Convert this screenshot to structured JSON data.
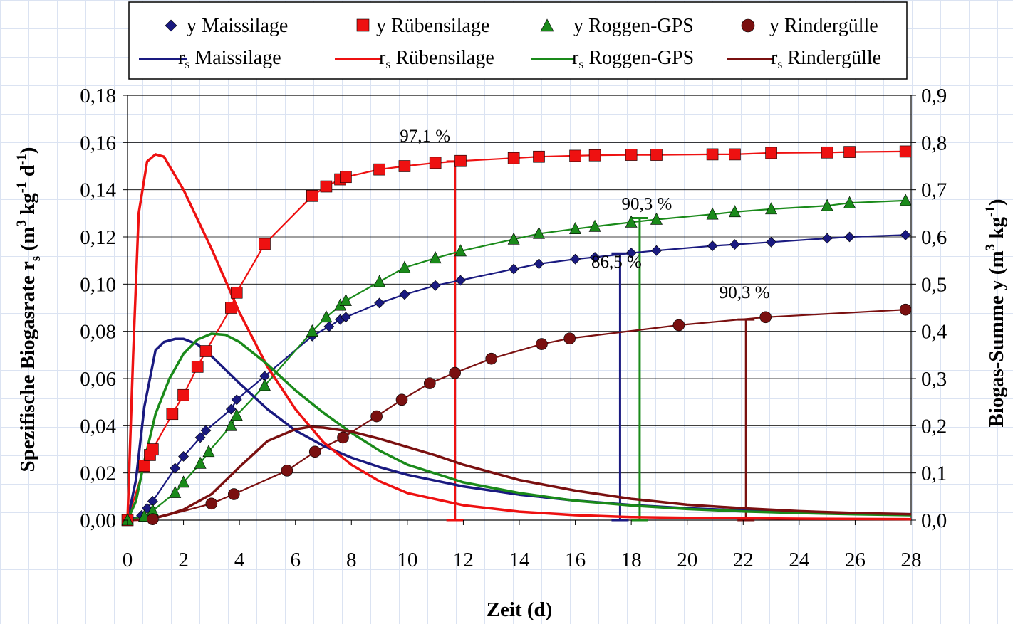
{
  "chart_data": {
    "type": "scatter",
    "xlabel": "Zeit (d)",
    "ylabel_left": "Spezifische Biogasrate r",
    "ylabel_left_sub": "s",
    "ylabel_left_unit": "(m",
    "ylabel_left_unit_exp3": "3",
    "ylabel_left_unit_kg": "kg",
    "ylabel_left_unit_exp_kg": "-1",
    "ylabel_left_unit_d": "d",
    "ylabel_left_unit_exp_d": "-1",
    "ylabel_left_close": ")",
    "ylabel_right": "Biogas-Summe y (m",
    "ylabel_right_exp3": "3",
    "ylabel_right_kg": "kg",
    "ylabel_right_exp_kg": "-1",
    "ylabel_right_close": ")",
    "xlim": [
      0,
      28
    ],
    "ylim_left": [
      0,
      0.18
    ],
    "ylim_right": [
      0,
      0.9
    ],
    "x_ticks": [
      "0",
      "2",
      "4",
      "6",
      "8",
      "10",
      "12",
      "14",
      "16",
      "18",
      "20",
      "22",
      "24",
      "26",
      "28"
    ],
    "y_left_ticks": [
      "0,00",
      "0,02",
      "0,04",
      "0,06",
      "0,08",
      "0,10",
      "0,12",
      "0,14",
      "0,16",
      "0,18"
    ],
    "y_right_ticks": [
      "0,0",
      "0,1",
      "0,2",
      "0,3",
      "0,4",
      "0,5",
      "0,6",
      "0,7",
      "0,8",
      "0,9"
    ],
    "grid": "horizontal",
    "legend_position": "top",
    "series": [
      {
        "name": "y Maissilage",
        "kind": "markers",
        "axis": "right",
        "marker": "diamond",
        "color": "#1a1a80",
        "points": [
          [
            0,
            0
          ],
          [
            0.5,
            0.01
          ],
          [
            0.7,
            0.025
          ],
          [
            0.9,
            0.04
          ],
          [
            1.7,
            0.11
          ],
          [
            2,
            0.135
          ],
          [
            2.6,
            0.175
          ],
          [
            2.8,
            0.19
          ],
          [
            3.7,
            0.235
          ],
          [
            3.9,
            0.255
          ],
          [
            4.9,
            0.305
          ],
          [
            6.6,
            0.39
          ],
          [
            7.2,
            0.41
          ],
          [
            7.6,
            0.425
          ],
          [
            7.8,
            0.43
          ],
          [
            9,
            0.46
          ],
          [
            9.9,
            0.478
          ],
          [
            11,
            0.497
          ],
          [
            11.9,
            0.508
          ],
          [
            13.8,
            0.532
          ],
          [
            14.7,
            0.543
          ],
          [
            16,
            0.553
          ],
          [
            16.7,
            0.557
          ],
          [
            18,
            0.566
          ],
          [
            18.9,
            0.571
          ],
          [
            20.9,
            0.581
          ],
          [
            21.7,
            0.584
          ],
          [
            23,
            0.589
          ],
          [
            25,
            0.597
          ],
          [
            25.8,
            0.6
          ],
          [
            27.8,
            0.604
          ]
        ]
      },
      {
        "name": "y Rübensilage",
        "kind": "markers",
        "axis": "right",
        "marker": "square",
        "color": "#ee1111",
        "points": [
          [
            0,
            0
          ],
          [
            0.6,
            0.115
          ],
          [
            0.8,
            0.138
          ],
          [
            0.9,
            0.15
          ],
          [
            1.6,
            0.225
          ],
          [
            2,
            0.265
          ],
          [
            2.5,
            0.325
          ],
          [
            2.8,
            0.358
          ],
          [
            3.7,
            0.45
          ],
          [
            3.9,
            0.482
          ],
          [
            4.9,
            0.585
          ],
          [
            6.6,
            0.687
          ],
          [
            7.1,
            0.707
          ],
          [
            7.6,
            0.722
          ],
          [
            7.8,
            0.727
          ],
          [
            9,
            0.743
          ],
          [
            9.9,
            0.75
          ],
          [
            11,
            0.757
          ],
          [
            11.9,
            0.761
          ],
          [
            13.8,
            0.767
          ],
          [
            14.7,
            0.77
          ],
          [
            16,
            0.772
          ],
          [
            16.7,
            0.773
          ],
          [
            18,
            0.774
          ],
          [
            18.9,
            0.774
          ],
          [
            20.9,
            0.775
          ],
          [
            21.7,
            0.775
          ],
          [
            23,
            0.778
          ],
          [
            25,
            0.779
          ],
          [
            25.8,
            0.78
          ],
          [
            27.8,
            0.781
          ]
        ]
      },
      {
        "name": "y Roggen-GPS",
        "kind": "markers",
        "axis": "right",
        "marker": "triangle",
        "color": "#1a8a1a",
        "points": [
          [
            0,
            0
          ],
          [
            0.6,
            0.008
          ],
          [
            0.9,
            0.02
          ],
          [
            1.7,
            0.058
          ],
          [
            2,
            0.08
          ],
          [
            2.6,
            0.12
          ],
          [
            2.9,
            0.145
          ],
          [
            3.7,
            0.2
          ],
          [
            3.9,
            0.222
          ],
          [
            4.9,
            0.285
          ],
          [
            6.6,
            0.4
          ],
          [
            7.1,
            0.43
          ],
          [
            7.6,
            0.455
          ],
          [
            7.8,
            0.465
          ],
          [
            9,
            0.505
          ],
          [
            9.9,
            0.535
          ],
          [
            11,
            0.555
          ],
          [
            11.9,
            0.57
          ],
          [
            13.8,
            0.595
          ],
          [
            14.7,
            0.607
          ],
          [
            16,
            0.617
          ],
          [
            16.7,
            0.622
          ],
          [
            18,
            0.631
          ],
          [
            18.9,
            0.637
          ],
          [
            20.9,
            0.648
          ],
          [
            21.7,
            0.653
          ],
          [
            23,
            0.659
          ],
          [
            25,
            0.666
          ],
          [
            25.8,
            0.672
          ],
          [
            27.8,
            0.677
          ]
        ]
      },
      {
        "name": "y Rindergülle",
        "kind": "markers",
        "axis": "right",
        "marker": "circle",
        "color": "#7a1010",
        "points": [
          [
            0.9,
            0.002
          ],
          [
            3,
            0.035
          ],
          [
            3.8,
            0.055
          ],
          [
            5.7,
            0.105
          ],
          [
            6.7,
            0.145
          ],
          [
            7.7,
            0.175
          ],
          [
            8.9,
            0.22
          ],
          [
            9.8,
            0.255
          ],
          [
            10.8,
            0.29
          ],
          [
            11.7,
            0.312
          ],
          [
            13,
            0.342
          ],
          [
            14.8,
            0.373
          ],
          [
            15.8,
            0.385
          ],
          [
            19.7,
            0.413
          ],
          [
            22.8,
            0.43
          ],
          [
            27.8,
            0.446
          ]
        ]
      },
      {
        "name": "rs Maissilage",
        "kind": "line",
        "axis": "left",
        "color": "#1a1a80",
        "points": [
          [
            0,
            0
          ],
          [
            0.3,
            0.017
          ],
          [
            0.6,
            0.048
          ],
          [
            1,
            0.072
          ],
          [
            1.3,
            0.0755
          ],
          [
            1.7,
            0.0768
          ],
          [
            2,
            0.0768
          ],
          [
            2.5,
            0.0745
          ],
          [
            3,
            0.0695
          ],
          [
            4,
            0.058
          ],
          [
            5,
            0.047
          ],
          [
            6,
            0.038
          ],
          [
            7,
            0.0315
          ],
          [
            8,
            0.0265
          ],
          [
            9,
            0.0225
          ],
          [
            10,
            0.0192
          ],
          [
            12,
            0.0143
          ],
          [
            14,
            0.0108
          ],
          [
            16,
            0.0083
          ],
          [
            18,
            0.0064
          ],
          [
            20,
            0.005
          ],
          [
            22,
            0.0041
          ],
          [
            24,
            0.0034
          ],
          [
            26,
            0.0028
          ],
          [
            28,
            0.0024
          ]
        ]
      },
      {
        "name": "rs Rübensilage",
        "kind": "line",
        "axis": "left",
        "color": "#ee1111",
        "points": [
          [
            0,
            0
          ],
          [
            0.2,
            0.07
          ],
          [
            0.4,
            0.13
          ],
          [
            0.7,
            0.152
          ],
          [
            1,
            0.155
          ],
          [
            1.3,
            0.154
          ],
          [
            2,
            0.14
          ],
          [
            3,
            0.115
          ],
          [
            4,
            0.088
          ],
          [
            5,
            0.065
          ],
          [
            6,
            0.047
          ],
          [
            7,
            0.033
          ],
          [
            8,
            0.0235
          ],
          [
            9,
            0.0165
          ],
          [
            10,
            0.0115
          ],
          [
            12,
            0.0063
          ],
          [
            14,
            0.0036
          ],
          [
            16,
            0.0021
          ],
          [
            18,
            0.0013
          ],
          [
            20,
            0.001
          ],
          [
            24,
            0.0006
          ],
          [
            28,
            0.0004
          ]
        ]
      },
      {
        "name": "rs Roggen-GPS",
        "kind": "line",
        "axis": "left",
        "color": "#1a8a1a",
        "points": [
          [
            0,
            0
          ],
          [
            0.3,
            0.008
          ],
          [
            0.6,
            0.025
          ],
          [
            1,
            0.045
          ],
          [
            1.5,
            0.06
          ],
          [
            2,
            0.0705
          ],
          [
            2.5,
            0.0765
          ],
          [
            3,
            0.079
          ],
          [
            3.5,
            0.0785
          ],
          [
            4,
            0.0755
          ],
          [
            5,
            0.066
          ],
          [
            6,
            0.055
          ],
          [
            7,
            0.0455
          ],
          [
            8,
            0.037
          ],
          [
            9,
            0.0295
          ],
          [
            10,
            0.0235
          ],
          [
            12,
            0.016
          ],
          [
            14,
            0.0115
          ],
          [
            16,
            0.0082
          ],
          [
            18,
            0.0062
          ],
          [
            20,
            0.0047
          ],
          [
            22,
            0.0037
          ],
          [
            24,
            0.003
          ],
          [
            26,
            0.0025
          ],
          [
            28,
            0.0021
          ]
        ]
      },
      {
        "name": "rs Rindergülle",
        "kind": "line",
        "axis": "left",
        "color": "#7a1010",
        "points": [
          [
            0,
            0
          ],
          [
            0.5,
            0.0002
          ],
          [
            1,
            0.001
          ],
          [
            1.5,
            0.0025
          ],
          [
            2,
            0.0045
          ],
          [
            3,
            0.011
          ],
          [
            4,
            0.0225
          ],
          [
            5,
            0.0335
          ],
          [
            6,
            0.0385
          ],
          [
            6.5,
            0.0395
          ],
          [
            7,
            0.0392
          ],
          [
            8,
            0.0375
          ],
          [
            9,
            0.0345
          ],
          [
            10,
            0.031
          ],
          [
            11,
            0.0275
          ],
          [
            12,
            0.0235
          ],
          [
            14,
            0.017
          ],
          [
            16,
            0.0125
          ],
          [
            18,
            0.009
          ],
          [
            20,
            0.0065
          ],
          [
            22,
            0.005
          ],
          [
            24,
            0.0038
          ],
          [
            26,
            0.003
          ],
          [
            28,
            0.0025
          ]
        ]
      }
    ],
    "annotations": [
      {
        "label": "97,1 %",
        "x": 11.7,
        "color": "#ee1111",
        "y_top": 0.152
      },
      {
        "label": "90,3 %",
        "x": 18.3,
        "color": "#1a8a1a",
        "y_top": 0.128
      },
      {
        "label": "86,5 %",
        "x": 17.6,
        "color": "#1a1a80",
        "y_top": 0.113
      },
      {
        "label": "90,3 %",
        "x": 22.1,
        "color": "#7a1010",
        "y_top": 0.085
      }
    ],
    "legend": {
      "row1": [
        {
          "label": "y Maissilage",
          "marker": "diamond",
          "color": "#1a1a80"
        },
        {
          "label": "y Rübensilage",
          "marker": "square",
          "color": "#ee1111"
        },
        {
          "label": "y Roggen-GPS",
          "marker": "triangle",
          "color": "#1a8a1a"
        },
        {
          "label": "y Rindergülle",
          "marker": "circle",
          "color": "#7a1010"
        }
      ],
      "row2": [
        {
          "r": "r",
          "sub": "s",
          "label": " Maissilage",
          "color": "#1a1a80"
        },
        {
          "r": "r",
          "sub": "s",
          "label": " Rübensilage",
          "color": "#ee1111"
        },
        {
          "r": "r",
          "sub": "s",
          "label": " Roggen-GPS",
          "color": "#1a8a1a"
        },
        {
          "r": "r",
          "sub": "s",
          "label": " Rindergülle",
          "color": "#7a1010"
        }
      ]
    }
  }
}
